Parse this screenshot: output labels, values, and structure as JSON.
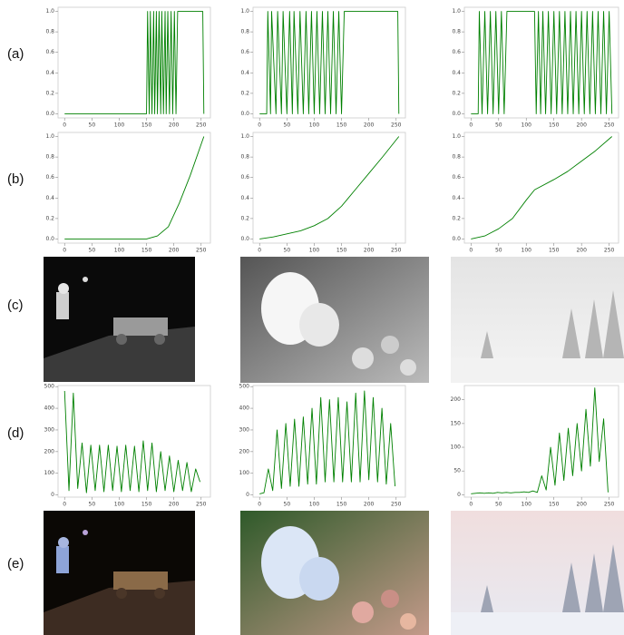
{
  "labels": [
    "(a)",
    "(b)",
    "(c)",
    "(d)",
    "(e)"
  ],
  "chart_data": [
    {
      "type": "line",
      "color": "#008000",
      "xlim": [
        -12,
        267
      ],
      "ylim": [
        -0.04,
        1.04
      ],
      "xticks": [
        0,
        50,
        100,
        150,
        200,
        250
      ],
      "yticks": [
        {
          "value": 0,
          "label": "0.0"
        },
        {
          "value": 0.2,
          "label": "0.2"
        },
        {
          "value": 0.4,
          "label": "0.4"
        },
        {
          "value": 0.6,
          "label": "0.6"
        },
        {
          "value": 0.8,
          "label": "0.8"
        },
        {
          "value": 1,
          "label": "1.0"
        }
      ],
      "x": [
        0,
        150,
        152,
        155,
        157,
        160,
        163,
        165,
        168,
        170,
        173,
        176,
        178,
        181,
        184,
        186,
        189,
        192,
        195,
        198,
        201,
        204,
        207,
        210,
        253,
        255
      ],
      "values": [
        0,
        0,
        1,
        0,
        1,
        0,
        1,
        0,
        1,
        0,
        1,
        0,
        1,
        0,
        1,
        0,
        1,
        0,
        1,
        0,
        1,
        0,
        1,
        1,
        1,
        0
      ]
    },
    {
      "type": "line",
      "color": "#008000",
      "xlim": [
        -12,
        267
      ],
      "ylim": [
        -0.04,
        1.04
      ],
      "xticks": [
        0,
        50,
        100,
        150,
        200,
        250
      ],
      "yticks": [
        {
          "value": 0,
          "label": "0.0"
        },
        {
          "value": 0.2,
          "label": "0.2"
        },
        {
          "value": 0.4,
          "label": "0.4"
        },
        {
          "value": 0.6,
          "label": "0.6"
        },
        {
          "value": 0.8,
          "label": "0.8"
        },
        {
          "value": 1,
          "label": "1.0"
        }
      ],
      "x": [
        0,
        13,
        15,
        20,
        22,
        30,
        33,
        40,
        43,
        50,
        55,
        60,
        63,
        70,
        74,
        80,
        85,
        90,
        95,
        100,
        105,
        110,
        115,
        120,
        125,
        130,
        135,
        140,
        145,
        150,
        155,
        160,
        253,
        255
      ],
      "values": [
        0,
        0,
        1,
        0,
        1,
        0,
        1,
        0,
        1,
        0,
        1,
        0,
        1,
        0,
        1,
        0,
        1,
        0,
        1,
        0,
        1,
        0,
        1,
        0,
        1,
        0,
        1,
        0,
        1,
        0,
        1,
        1,
        1,
        0
      ]
    },
    {
      "type": "line",
      "color": "#008000",
      "xlim": [
        -12,
        267
      ],
      "ylim": [
        -0.04,
        1.04
      ],
      "xticks": [
        0,
        50,
        100,
        150,
        200,
        250
      ],
      "yticks": [
        {
          "value": 0,
          "label": "0.0"
        },
        {
          "value": 0.2,
          "label": "0.2"
        },
        {
          "value": 0.4,
          "label": "0.4"
        },
        {
          "value": 0.6,
          "label": "0.6"
        },
        {
          "value": 0.8,
          "label": "0.8"
        },
        {
          "value": 1,
          "label": "1.0"
        }
      ],
      "x": [
        0,
        13,
        15,
        20,
        25,
        30,
        35,
        40,
        45,
        50,
        55,
        60,
        65,
        70,
        115,
        118,
        122,
        126,
        130,
        135,
        140,
        145,
        150,
        155,
        160,
        165,
        170,
        175,
        180,
        185,
        190,
        195,
        200,
        205,
        210,
        215,
        220,
        225,
        230,
        235,
        240,
        245,
        250,
        255
      ],
      "values": [
        0,
        0,
        1,
        0,
        1,
        0,
        1,
        0,
        1,
        0,
        1,
        0,
        1,
        1,
        1,
        0,
        1,
        0,
        1,
        0,
        1,
        0,
        1,
        0,
        1,
        0,
        1,
        0,
        1,
        0,
        1,
        0,
        1,
        0,
        1,
        0,
        1,
        0,
        1,
        0,
        1,
        0,
        1,
        0
      ]
    },
    {
      "type": "line",
      "color": "#008000",
      "xlim": [
        -12,
        267
      ],
      "ylim": [
        -0.04,
        1.04
      ],
      "xticks": [
        0,
        50,
        100,
        150,
        200,
        250
      ],
      "yticks": [
        {
          "value": 0,
          "label": "0.0"
        },
        {
          "value": 0.2,
          "label": "0.2"
        },
        {
          "value": 0.4,
          "label": "0.4"
        },
        {
          "value": 0.6,
          "label": "0.6"
        },
        {
          "value": 0.8,
          "label": "0.8"
        },
        {
          "value": 1,
          "label": "1.0"
        }
      ],
      "x": [
        0,
        100,
        150,
        170,
        190,
        210,
        230,
        255
      ],
      "values": [
        0,
        0,
        0,
        0.03,
        0.12,
        0.35,
        0.62,
        1.0
      ]
    },
    {
      "type": "line",
      "color": "#008000",
      "xlim": [
        -12,
        267
      ],
      "ylim": [
        -0.04,
        1.04
      ],
      "xticks": [
        0,
        50,
        100,
        150,
        200,
        250
      ],
      "yticks": [
        {
          "value": 0,
          "label": "0.0"
        },
        {
          "value": 0.2,
          "label": "0.2"
        },
        {
          "value": 0.4,
          "label": "0.4"
        },
        {
          "value": 0.6,
          "label": "0.6"
        },
        {
          "value": 0.8,
          "label": "0.8"
        },
        {
          "value": 1,
          "label": "1.0"
        }
      ],
      "x": [
        0,
        25,
        50,
        75,
        100,
        125,
        150,
        175,
        200,
        225,
        255
      ],
      "values": [
        0,
        0.02,
        0.05,
        0.08,
        0.13,
        0.2,
        0.32,
        0.48,
        0.64,
        0.8,
        1.0
      ]
    },
    {
      "type": "line",
      "color": "#008000",
      "xlim": [
        -12,
        267
      ],
      "ylim": [
        -0.04,
        1.04
      ],
      "xticks": [
        0,
        50,
        100,
        150,
        200,
        250
      ],
      "yticks": [
        {
          "value": 0,
          "label": "0.0"
        },
        {
          "value": 0.2,
          "label": "0.2"
        },
        {
          "value": 0.4,
          "label": "0.4"
        },
        {
          "value": 0.6,
          "label": "0.6"
        },
        {
          "value": 0.8,
          "label": "0.8"
        },
        {
          "value": 1,
          "label": "1.0"
        }
      ],
      "x": [
        0,
        25,
        50,
        75,
        100,
        115,
        150,
        175,
        200,
        225,
        255
      ],
      "values": [
        0,
        0.03,
        0.1,
        0.2,
        0.38,
        0.48,
        0.58,
        0.66,
        0.76,
        0.86,
        1.0
      ]
    },
    {
      "type": "line",
      "color": "#008000",
      "xlim": [
        -12,
        267
      ],
      "ylim": [
        -10,
        505
      ],
      "xticks": [
        0,
        50,
        100,
        150,
        200,
        250
      ],
      "yticks": [
        0,
        100,
        200,
        300,
        400,
        500
      ],
      "x": [
        0,
        8,
        16,
        24,
        32,
        40,
        48,
        56,
        64,
        72,
        80,
        88,
        96,
        104,
        112,
        120,
        128,
        136,
        144,
        152,
        160,
        168,
        176,
        184,
        192,
        200,
        208,
        216,
        224,
        232,
        240,
        248
      ],
      "values": [
        480,
        20,
        470,
        30,
        240,
        10,
        230,
        20,
        230,
        15,
        230,
        20,
        225,
        15,
        230,
        20,
        225,
        15,
        250,
        20,
        240,
        15,
        200,
        20,
        180,
        15,
        160,
        20,
        150,
        15,
        120,
        60
      ]
    },
    {
      "type": "line",
      "color": "#008000",
      "xlim": [
        -12,
        267
      ],
      "ylim": [
        -10,
        505
      ],
      "xticks": [
        0,
        50,
        100,
        150,
        200,
        250
      ],
      "yticks": [
        0,
        100,
        200,
        300,
        400,
        500
      ],
      "x": [
        0,
        8,
        16,
        24,
        32,
        40,
        48,
        56,
        64,
        72,
        80,
        88,
        96,
        104,
        112,
        120,
        128,
        136,
        144,
        152,
        160,
        168,
        176,
        184,
        192,
        200,
        208,
        216,
        224,
        232,
        240,
        248
      ],
      "values": [
        5,
        10,
        120,
        20,
        300,
        30,
        330,
        40,
        350,
        40,
        360,
        50,
        400,
        50,
        450,
        60,
        440,
        60,
        450,
        60,
        430,
        60,
        470,
        60,
        480,
        70,
        450,
        60,
        400,
        50,
        330,
        40
      ]
    },
    {
      "type": "line",
      "color": "#008000",
      "xlim": [
        -12,
        267
      ],
      "ylim": [
        -5,
        230
      ],
      "xticks": [
        0,
        50,
        100,
        150,
        200,
        250
      ],
      "yticks": [
        0,
        50,
        100,
        150,
        200
      ],
      "x": [
        0,
        8,
        16,
        24,
        32,
        40,
        48,
        56,
        64,
        72,
        80,
        88,
        96,
        104,
        112,
        120,
        128,
        136,
        144,
        152,
        160,
        168,
        176,
        184,
        192,
        200,
        208,
        216,
        224,
        232,
        240,
        248
      ],
      "values": [
        2,
        3,
        4,
        3,
        4,
        3,
        5,
        4,
        5,
        4,
        5,
        5,
        6,
        5,
        8,
        5,
        40,
        10,
        100,
        20,
        130,
        30,
        140,
        40,
        150,
        50,
        180,
        60,
        225,
        70,
        160,
        5
      ]
    }
  ]
}
